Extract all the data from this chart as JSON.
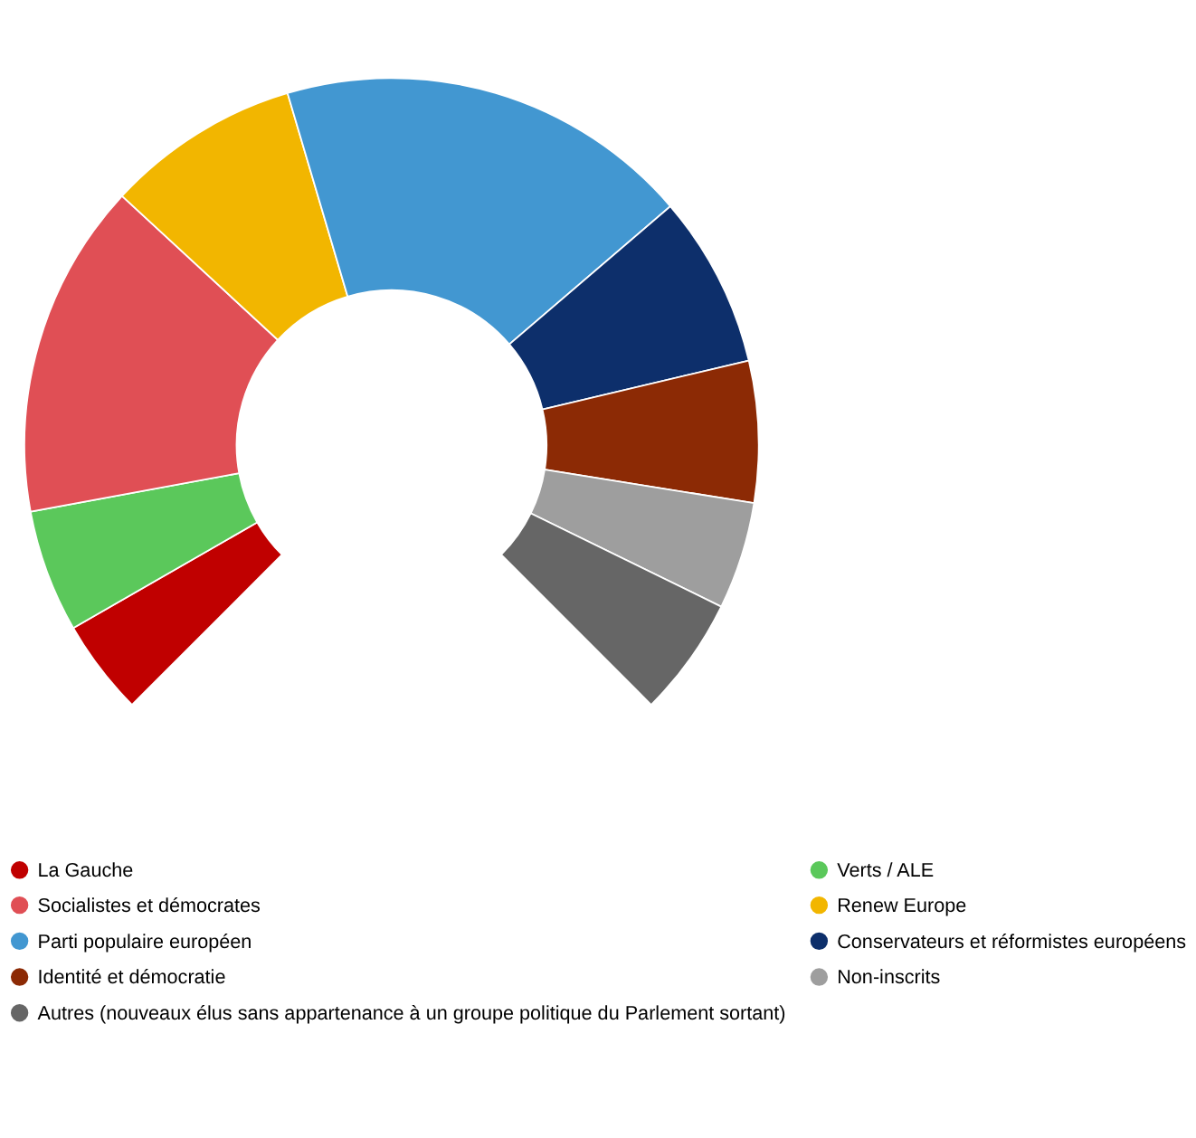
{
  "chart_data": {
    "type": "donut",
    "categories": [
      "La Gauche",
      "Verts / ALE",
      "Socialistes et démocrates",
      "Renew Europe",
      "Parti populaire européen",
      "Conservateurs et réformistes européens",
      "Identité et démocratie",
      "Non-inscrits",
      "Autres (nouveaux élus sans appartenance à un groupe politique du Parlement sortant)"
    ],
    "values": [
      5.6,
      7.2,
      19.7,
      11.4,
      24.4,
      10.1,
      8.3,
      6.3,
      7.0
    ],
    "colors": [
      "#c00000",
      "#5bc85b",
      "#e04f55",
      "#f2b600",
      "#4297d1",
      "#0d2f6b",
      "#8c2a05",
      "#9e9e9e",
      "#666666"
    ],
    "legend": "bottom"
  }
}
